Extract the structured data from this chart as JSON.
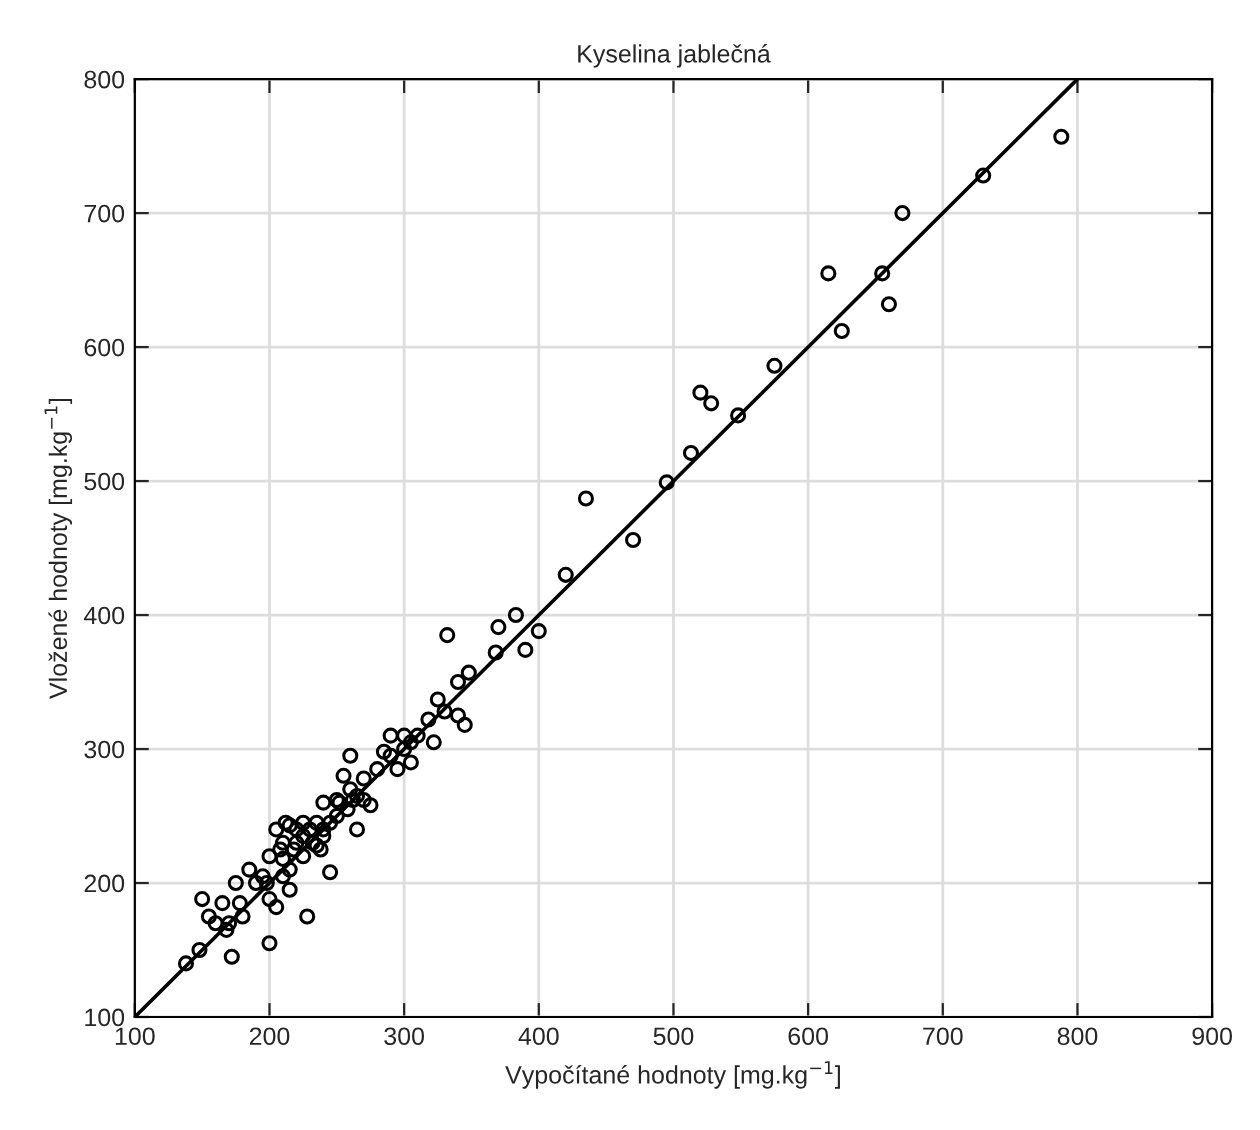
{
  "chart_data": {
    "type": "scatter",
    "title": "Kyselina jablečná",
    "xlabel": "Vypočítané hodnoty [mg.kg$^{−1}$]",
    "ylabel": "Vložené hodnoty [mg.kg$^{−1}$]",
    "xlim": [
      100,
      900
    ],
    "ylim": [
      100,
      800
    ],
    "xticks": [
      100,
      200,
      300,
      400,
      500,
      600,
      700,
      800,
      900
    ],
    "yticks": [
      100,
      200,
      300,
      400,
      500,
      600,
      700,
      800
    ],
    "grid": true,
    "marker": "circle",
    "series": [
      {
        "color": "#000000",
        "x": [
          788,
          730,
          670,
          660,
          655,
          625,
          615,
          575,
          548,
          528,
          520,
          513,
          495,
          470,
          435,
          420,
          400,
          390,
          383,
          370,
          368,
          348,
          345,
          340,
          340,
          332,
          330,
          325,
          322,
          318,
          310,
          305,
          305,
          300,
          300,
          295,
          290,
          290,
          285,
          280,
          275,
          270,
          270,
          265,
          265,
          260,
          260,
          255,
          258,
          250,
          252,
          245,
          245,
          240,
          240,
          238,
          235,
          232,
          230,
          228,
          225,
          225,
          220,
          220,
          218,
          215,
          215,
          212,
          210,
          210,
          208,
          205,
          205,
          200,
          200,
          200,
          198,
          195,
          190,
          185,
          180,
          178,
          175,
          172,
          170,
          168,
          165,
          160,
          155,
          150,
          148,
          138,
          240,
          235,
          225,
          215,
          210,
          250,
          262
        ],
        "values": [
          757,
          728,
          700,
          632,
          655,
          612,
          655,
          586,
          549,
          558,
          566,
          521,
          499,
          456,
          487,
          430,
          388,
          374,
          400,
          391,
          372,
          357,
          318,
          350,
          325,
          385,
          328,
          337,
          305,
          322,
          310,
          305,
          290,
          300,
          310,
          285,
          310,
          295,
          298,
          285,
          258,
          262,
          278,
          240,
          265,
          270,
          295,
          280,
          255,
          250,
          260,
          245,
          208,
          235,
          260,
          225,
          245,
          230,
          240,
          175,
          220,
          245,
          240,
          230,
          225,
          210,
          195,
          245,
          218,
          205,
          225,
          240,
          182,
          220,
          188,
          155,
          200,
          205,
          200,
          210,
          175,
          185,
          200,
          145,
          170,
          165,
          185,
          170,
          175,
          188,
          150,
          140,
          240,
          228,
          235,
          243,
          230,
          262,
          262
        ]
      },
      {
        "type": "line",
        "color": "#000000",
        "x": [
          100,
          800
        ],
        "values": [
          100,
          800
        ],
        "marker": "none"
      }
    ]
  }
}
